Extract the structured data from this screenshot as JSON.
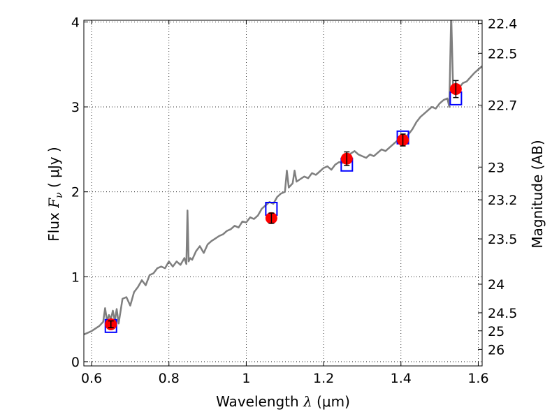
{
  "chart_data": {
    "type": "line",
    "xlabel": {
      "prefix": "Wavelength  ",
      "symbol": "λ",
      "unit": " (μm)"
    },
    "ylabel": {
      "prefix": "Flux  ",
      "symbol": "F",
      "subscript": "ν",
      "unit": "  ( μJy )"
    },
    "y2label": "Magnitude (AB)",
    "xlim": [
      0.58,
      1.61
    ],
    "ylim": [
      -0.05,
      4.02
    ],
    "grid": true,
    "x_ticks": [
      {
        "value": 0.6,
        "label": "0.6"
      },
      {
        "value": 0.8,
        "label": "0.8"
      },
      {
        "value": 1.0,
        "label": "1"
      },
      {
        "value": 1.2,
        "label": "1.2"
      },
      {
        "value": 1.4,
        "label": "1.4"
      },
      {
        "value": 1.6,
        "label": "1.6"
      }
    ],
    "y_ticks": [
      {
        "value": 0,
        "label": "0"
      },
      {
        "value": 1,
        "label": "1"
      },
      {
        "value": 2,
        "label": "2"
      },
      {
        "value": 3,
        "label": "3"
      },
      {
        "value": 4,
        "label": "4"
      }
    ],
    "y2_ticks": [
      {
        "mag": 22.4,
        "label": "22.4"
      },
      {
        "mag": 22.5,
        "label": "22.5"
      },
      {
        "mag": 22.7,
        "label": "22.7"
      },
      {
        "mag": 23.0,
        "label": "23"
      },
      {
        "mag": 23.2,
        "label": "23.2"
      },
      {
        "mag": 23.5,
        "label": "23.5"
      },
      {
        "mag": 24.0,
        "label": "24"
      },
      {
        "mag": 24.5,
        "label": "24.5"
      },
      {
        "mag": 25.0,
        "label": "25"
      },
      {
        "mag": 26.0,
        "label": "26"
      }
    ],
    "spectrum": {
      "color": "#7f7f7f",
      "x": [
        0.58,
        0.6,
        0.62,
        0.63,
        0.635,
        0.64,
        0.645,
        0.65,
        0.655,
        0.66,
        0.665,
        0.67,
        0.68,
        0.69,
        0.7,
        0.71,
        0.72,
        0.73,
        0.74,
        0.75,
        0.76,
        0.77,
        0.78,
        0.79,
        0.8,
        0.81,
        0.82,
        0.83,
        0.84,
        0.845,
        0.848,
        0.851,
        0.855,
        0.86,
        0.87,
        0.88,
        0.89,
        0.9,
        0.91,
        0.92,
        0.93,
        0.94,
        0.95,
        0.96,
        0.97,
        0.98,
        0.99,
        1.0,
        1.01,
        1.02,
        1.03,
        1.04,
        1.05,
        1.06,
        1.07,
        1.08,
        1.09,
        1.1,
        1.105,
        1.11,
        1.12,
        1.125,
        1.13,
        1.14,
        1.15,
        1.16,
        1.17,
        1.18,
        1.19,
        1.2,
        1.21,
        1.22,
        1.23,
        1.24,
        1.25,
        1.26,
        1.27,
        1.28,
        1.29,
        1.3,
        1.31,
        1.32,
        1.33,
        1.34,
        1.35,
        1.36,
        1.37,
        1.38,
        1.39,
        1.4,
        1.41,
        1.42,
        1.43,
        1.44,
        1.45,
        1.46,
        1.47,
        1.48,
        1.49,
        1.5,
        1.51,
        1.52,
        1.525,
        1.53,
        1.535,
        1.54,
        1.55,
        1.56,
        1.57,
        1.58,
        1.59,
        1.6,
        1.61
      ],
      "y": [
        0.32,
        0.36,
        0.42,
        0.47,
        0.63,
        0.48,
        0.55,
        0.5,
        0.6,
        0.48,
        0.62,
        0.45,
        0.74,
        0.76,
        0.66,
        0.82,
        0.88,
        0.96,
        0.9,
        1.02,
        1.04,
        1.1,
        1.12,
        1.1,
        1.18,
        1.12,
        1.18,
        1.14,
        1.22,
        1.15,
        1.78,
        1.18,
        1.22,
        1.2,
        1.3,
        1.36,
        1.28,
        1.38,
        1.42,
        1.45,
        1.48,
        1.5,
        1.54,
        1.56,
        1.6,
        1.58,
        1.65,
        1.64,
        1.7,
        1.68,
        1.72,
        1.8,
        1.84,
        1.88,
        1.86,
        1.94,
        1.98,
        2.0,
        2.25,
        2.05,
        2.1,
        2.25,
        2.12,
        2.15,
        2.18,
        2.16,
        2.22,
        2.2,
        2.24,
        2.28,
        2.3,
        2.26,
        2.32,
        2.35,
        2.34,
        2.4,
        2.45,
        2.48,
        2.44,
        2.42,
        2.4,
        2.44,
        2.42,
        2.46,
        2.5,
        2.48,
        2.52,
        2.56,
        2.6,
        2.62,
        2.64,
        2.68,
        2.74,
        2.82,
        2.88,
        2.92,
        2.96,
        3.0,
        2.98,
        3.04,
        3.08,
        3.1,
        3.0,
        4.1,
        3.2,
        3.15,
        3.22,
        3.28,
        3.3,
        3.35,
        3.4,
        3.44,
        3.48
      ]
    },
    "photometry": [
      {
        "x": 0.65,
        "y": 0.44,
        "err": 0.04,
        "model": 0.42,
        "color": "#ff0000",
        "box_color": "#0000ff"
      },
      {
        "x": 1.065,
        "y": 1.69,
        "err": 0.06,
        "model": 1.8,
        "color": "#ff0000",
        "box_color": "#0000ff"
      },
      {
        "x": 1.26,
        "y": 2.39,
        "err": 0.08,
        "model": 2.32,
        "color": "#ff0000",
        "box_color": "#0000ff"
      },
      {
        "x": 1.405,
        "y": 2.61,
        "err": 0.07,
        "model": 2.64,
        "color": "#ff0000",
        "box_color": "#0000ff"
      },
      {
        "x": 1.542,
        "y": 3.21,
        "err": 0.1,
        "model": 3.1,
        "color": "#ff0000",
        "box_color": "#0000ff"
      }
    ]
  }
}
